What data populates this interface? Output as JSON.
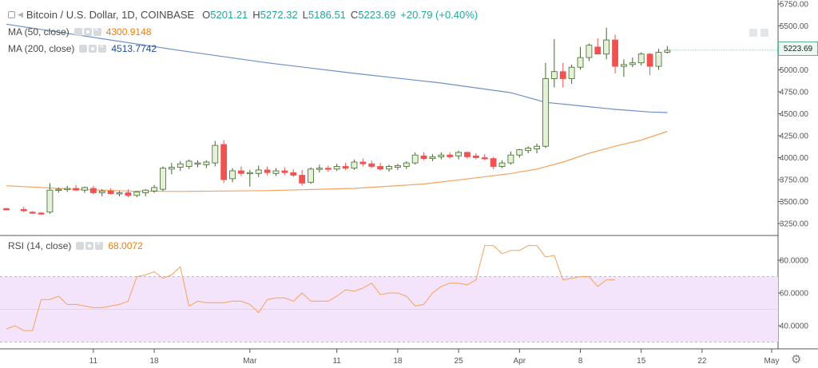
{
  "header": {
    "symbol_title": "Bitcoin / U.S. Dollar, 1D, COINBASE",
    "open_label": "O",
    "open": "5201.21",
    "high_label": "H",
    "high": "5272.32",
    "low_label": "L",
    "low": "5186.51",
    "close_label": "C",
    "close": "5223.69",
    "change": "+20.79 (+0.40%)"
  },
  "indicators": {
    "ma50_label": "MA (50, close)",
    "ma50_value": "4300.9148",
    "ma200_label": "MA (200, close)",
    "ma200_value": "4513.7742",
    "rsi_label": "RSI (14, close)",
    "rsi_value": "68.0072"
  },
  "price_axis": {
    "current_price": "5223.69",
    "ticks": [
      "5750.00",
      "5500.00",
      "5250.00",
      "5000.00",
      "4750.00",
      "4500.00",
      "4250.00",
      "4000.00",
      "3750.00",
      "3500.00",
      "3250.00"
    ]
  },
  "rsi_axis": {
    "ticks": [
      "80.0000",
      "60.0000",
      "40.0000"
    ]
  },
  "time_axis": {
    "labels": [
      "11",
      "18",
      "Mar",
      "11",
      "18",
      "25",
      "Apr",
      "8",
      "15",
      "22",
      "May"
    ]
  },
  "colors": {
    "up_body": "#e7f0d9",
    "up_border": "#3f6b2b",
    "down": "#ef5350",
    "ma50": "#f5a25d",
    "ma200": "#6e8fc7",
    "rsi_line": "#f5a25d",
    "rsi_band": "#f3e4fb",
    "pos_change": "#26a69a",
    "ma50_text": "#f57c00",
    "ma200_text": "#1e4c99"
  },
  "icons": [
    "collapse-icon",
    "chevron-icon",
    "eye-icon",
    "settings-icon",
    "close-icon",
    "gear-icon"
  ],
  "chart_data": [
    {
      "type": "candlestick",
      "title": "Bitcoin / U.S. Dollar, 1D, COINBASE",
      "ylim": [
        3150,
        5780
      ],
      "x_day_range": [
        0,
        88
      ],
      "x_ticks": [
        {
          "day": 10,
          "label": "11"
        },
        {
          "day": 17,
          "label": "18"
        },
        {
          "day": 28,
          "label": "Mar"
        },
        {
          "day": 38,
          "label": "11"
        },
        {
          "day": 45,
          "label": "18"
        },
        {
          "day": 52,
          "label": "25"
        },
        {
          "day": 59,
          "label": "Apr"
        },
        {
          "day": 66,
          "label": "8"
        },
        {
          "day": 73,
          "label": "15"
        },
        {
          "day": 80,
          "label": "22"
        },
        {
          "day": 88,
          "label": "May"
        }
      ],
      "candles": [
        {
          "d": 0,
          "o": 3420,
          "h": 3430,
          "l": 3400,
          "c": 3405
        },
        {
          "d": 2,
          "o": 3410,
          "h": 3440,
          "l": 3380,
          "c": 3395
        },
        {
          "d": 3,
          "o": 3380,
          "h": 3390,
          "l": 3360,
          "c": 3370
        },
        {
          "d": 4,
          "o": 3370,
          "h": 3380,
          "l": 3350,
          "c": 3360
        },
        {
          "d": 5,
          "o": 3380,
          "h": 3710,
          "l": 3360,
          "c": 3630
        },
        {
          "d": 6,
          "o": 3630,
          "h": 3660,
          "l": 3600,
          "c": 3640
        },
        {
          "d": 7,
          "o": 3640,
          "h": 3680,
          "l": 3610,
          "c": 3650
        },
        {
          "d": 8,
          "o": 3650,
          "h": 3690,
          "l": 3620,
          "c": 3630
        },
        {
          "d": 9,
          "o": 3630,
          "h": 3670,
          "l": 3600,
          "c": 3660
        },
        {
          "d": 10,
          "o": 3650,
          "h": 3680,
          "l": 3580,
          "c": 3600
        },
        {
          "d": 11,
          "o": 3600,
          "h": 3640,
          "l": 3560,
          "c": 3620
        },
        {
          "d": 12,
          "o": 3620,
          "h": 3650,
          "l": 3580,
          "c": 3590
        },
        {
          "d": 13,
          "o": 3590,
          "h": 3620,
          "l": 3560,
          "c": 3600
        },
        {
          "d": 14,
          "o": 3600,
          "h": 3640,
          "l": 3550,
          "c": 3570
        },
        {
          "d": 15,
          "o": 3570,
          "h": 3620,
          "l": 3550,
          "c": 3610
        },
        {
          "d": 16,
          "o": 3600,
          "h": 3640,
          "l": 3560,
          "c": 3630
        },
        {
          "d": 17,
          "o": 3620,
          "h": 3690,
          "l": 3600,
          "c": 3660
        },
        {
          "d": 18,
          "o": 3640,
          "h": 3900,
          "l": 3620,
          "c": 3880
        },
        {
          "d": 19,
          "o": 3870,
          "h": 3940,
          "l": 3810,
          "c": 3890
        },
        {
          "d": 20,
          "o": 3890,
          "h": 3960,
          "l": 3850,
          "c": 3930
        },
        {
          "d": 21,
          "o": 3900,
          "h": 3980,
          "l": 3870,
          "c": 3960
        },
        {
          "d": 22,
          "o": 3930,
          "h": 3970,
          "l": 3890,
          "c": 3940
        },
        {
          "d": 23,
          "o": 3920,
          "h": 3970,
          "l": 3880,
          "c": 3950
        },
        {
          "d": 24,
          "o": 3940,
          "h": 4190,
          "l": 3900,
          "c": 4140
        },
        {
          "d": 25,
          "o": 4150,
          "h": 4200,
          "l": 3710,
          "c": 3750
        },
        {
          "d": 26,
          "o": 3760,
          "h": 3880,
          "l": 3720,
          "c": 3850
        },
        {
          "d": 27,
          "o": 3850,
          "h": 3900,
          "l": 3790,
          "c": 3820
        },
        {
          "d": 28,
          "o": 3820,
          "h": 3860,
          "l": 3670,
          "c": 3830
        },
        {
          "d": 29,
          "o": 3820,
          "h": 3910,
          "l": 3780,
          "c": 3860
        },
        {
          "d": 30,
          "o": 3860,
          "h": 3900,
          "l": 3800,
          "c": 3830
        },
        {
          "d": 31,
          "o": 3820,
          "h": 3880,
          "l": 3790,
          "c": 3850
        },
        {
          "d": 32,
          "o": 3850,
          "h": 3890,
          "l": 3800,
          "c": 3830
        },
        {
          "d": 33,
          "o": 3830,
          "h": 3870,
          "l": 3780,
          "c": 3800
        },
        {
          "d": 34,
          "o": 3800,
          "h": 3860,
          "l": 3680,
          "c": 3710
        },
        {
          "d": 35,
          "o": 3720,
          "h": 3890,
          "l": 3700,
          "c": 3870
        },
        {
          "d": 36,
          "o": 3870,
          "h": 3920,
          "l": 3830,
          "c": 3880
        },
        {
          "d": 37,
          "o": 3880,
          "h": 3910,
          "l": 3840,
          "c": 3870
        },
        {
          "d": 38,
          "o": 3870,
          "h": 3930,
          "l": 3850,
          "c": 3900
        },
        {
          "d": 39,
          "o": 3900,
          "h": 3940,
          "l": 3860,
          "c": 3880
        },
        {
          "d": 40,
          "o": 3880,
          "h": 3980,
          "l": 3860,
          "c": 3950
        },
        {
          "d": 41,
          "o": 3950,
          "h": 3990,
          "l": 3900,
          "c": 3930
        },
        {
          "d": 42,
          "o": 3930,
          "h": 3970,
          "l": 3880,
          "c": 3900
        },
        {
          "d": 43,
          "o": 3900,
          "h": 3940,
          "l": 3850,
          "c": 3870
        },
        {
          "d": 44,
          "o": 3870,
          "h": 3920,
          "l": 3840,
          "c": 3900
        },
        {
          "d": 45,
          "o": 3890,
          "h": 3930,
          "l": 3860,
          "c": 3910
        },
        {
          "d": 46,
          "o": 3900,
          "h": 3960,
          "l": 3870,
          "c": 3940
        },
        {
          "d": 47,
          "o": 3940,
          "h": 4060,
          "l": 3920,
          "c": 4030
        },
        {
          "d": 48,
          "o": 4020,
          "h": 4060,
          "l": 3970,
          "c": 3990
        },
        {
          "d": 49,
          "o": 3990,
          "h": 4040,
          "l": 3960,
          "c": 4010
        },
        {
          "d": 50,
          "o": 4010,
          "h": 4060,
          "l": 3980,
          "c": 4030
        },
        {
          "d": 51,
          "o": 4030,
          "h": 4060,
          "l": 3990,
          "c": 4010
        },
        {
          "d": 52,
          "o": 4020,
          "h": 4080,
          "l": 3980,
          "c": 4060
        },
        {
          "d": 53,
          "o": 4060,
          "h": 4070,
          "l": 3990,
          "c": 4010
        },
        {
          "d": 54,
          "o": 4020,
          "h": 4050,
          "l": 3980,
          "c": 4000
        },
        {
          "d": 55,
          "o": 4000,
          "h": 4040,
          "l": 3970,
          "c": 3990
        },
        {
          "d": 56,
          "o": 3990,
          "h": 4010,
          "l": 3870,
          "c": 3900
        },
        {
          "d": 57,
          "o": 3900,
          "h": 3970,
          "l": 3880,
          "c": 3940
        },
        {
          "d": 58,
          "o": 3940,
          "h": 4070,
          "l": 3920,
          "c": 4030
        },
        {
          "d": 59,
          "o": 4030,
          "h": 4100,
          "l": 4000,
          "c": 4090
        },
        {
          "d": 60,
          "o": 4080,
          "h": 4130,
          "l": 4050,
          "c": 4110
        },
        {
          "d": 61,
          "o": 4100,
          "h": 4160,
          "l": 4050,
          "c": 4130
        },
        {
          "d": 62,
          "o": 4130,
          "h": 5080,
          "l": 4110,
          "c": 4900
        },
        {
          "d": 63,
          "o": 4900,
          "h": 5350,
          "l": 4800,
          "c": 4980
        },
        {
          "d": 64,
          "o": 4980,
          "h": 5080,
          "l": 4800,
          "c": 4900
        },
        {
          "d": 65,
          "o": 4900,
          "h": 5060,
          "l": 4840,
          "c": 5030
        },
        {
          "d": 66,
          "o": 5030,
          "h": 5260,
          "l": 5000,
          "c": 5140
        },
        {
          "d": 67,
          "o": 5140,
          "h": 5300,
          "l": 5100,
          "c": 5280
        },
        {
          "d": 68,
          "o": 5260,
          "h": 5360,
          "l": 5180,
          "c": 5180
        },
        {
          "d": 69,
          "o": 5180,
          "h": 5480,
          "l": 5120,
          "c": 5340
        },
        {
          "d": 70,
          "o": 5340,
          "h": 5400,
          "l": 4960,
          "c": 5040
        },
        {
          "d": 71,
          "o": 5040,
          "h": 5120,
          "l": 4920,
          "c": 5060
        },
        {
          "d": 72,
          "o": 5060,
          "h": 5140,
          "l": 5030,
          "c": 5080
        },
        {
          "d": 73,
          "o": 5080,
          "h": 5200,
          "l": 5050,
          "c": 5180
        },
        {
          "d": 74,
          "o": 5180,
          "h": 5190,
          "l": 4940,
          "c": 5040
        },
        {
          "d": 75,
          "o": 5040,
          "h": 5240,
          "l": 5000,
          "c": 5200
        },
        {
          "d": 76,
          "o": 5201.21,
          "h": 5272.32,
          "l": 5186.51,
          "c": 5223.69
        }
      ],
      "series": [
        {
          "name": "MA (50, close)",
          "points": [
            [
              0,
              3680
            ],
            [
              8,
              3640
            ],
            [
              14,
              3620
            ],
            [
              20,
              3615
            ],
            [
              30,
              3625
            ],
            [
              40,
              3650
            ],
            [
              48,
              3700
            ],
            [
              54,
              3770
            ],
            [
              58,
              3820
            ],
            [
              61,
              3870
            ],
            [
              64,
              3950
            ],
            [
              67,
              4050
            ],
            [
              70,
              4130
            ],
            [
              73,
              4200
            ],
            [
              76,
              4300
            ]
          ]
        },
        {
          "name": "MA (200, close)",
          "points": [
            [
              0,
              5520
            ],
            [
              10,
              5370
            ],
            [
              20,
              5220
            ],
            [
              30,
              5080
            ],
            [
              40,
              4960
            ],
            [
              50,
              4850
            ],
            [
              58,
              4740
            ],
            [
              62,
              4630
            ],
            [
              66,
              4590
            ],
            [
              70,
              4550
            ],
            [
              74,
              4520
            ],
            [
              76,
              4514
            ]
          ]
        }
      ]
    },
    {
      "type": "line",
      "title": "RSI (14, close)",
      "ylim": [
        25,
        95
      ],
      "band": [
        30,
        70
      ],
      "series": [
        {
          "name": "RSI (14, close)",
          "points": [
            [
              0,
              38
            ],
            [
              1,
              40
            ],
            [
              2,
              37
            ],
            [
              3,
              37
            ],
            [
              4,
              56
            ],
            [
              5,
              56
            ],
            [
              6,
              58
            ],
            [
              7,
              53
            ],
            [
              8,
              53
            ],
            [
              9,
              52
            ],
            [
              10,
              51
            ],
            [
              11,
              51
            ],
            [
              12,
              52
            ],
            [
              13,
              53
            ],
            [
              14,
              55
            ],
            [
              15,
              70
            ],
            [
              16,
              71
            ],
            [
              17,
              73
            ],
            [
              18,
              69
            ],
            [
              19,
              71
            ],
            [
              20,
              76
            ],
            [
              21,
              52
            ],
            [
              22,
              55
            ],
            [
              23,
              54
            ],
            [
              24,
              54
            ],
            [
              25,
              54
            ],
            [
              26,
              55
            ],
            [
              27,
              55
            ],
            [
              28,
              53
            ],
            [
              29,
              48
            ],
            [
              30,
              56
            ],
            [
              31,
              57
            ],
            [
              32,
              57
            ],
            [
              33,
              55
            ],
            [
              34,
              60
            ],
            [
              35,
              55
            ],
            [
              36,
              55
            ],
            [
              37,
              55
            ],
            [
              38,
              58
            ],
            [
              39,
              62
            ],
            [
              40,
              61
            ],
            [
              41,
              63
            ],
            [
              42,
              66
            ],
            [
              43,
              59
            ],
            [
              44,
              60
            ],
            [
              45,
              60
            ],
            [
              46,
              58
            ],
            [
              47,
              52
            ],
            [
              48,
              53
            ],
            [
              49,
              60
            ],
            [
              50,
              64
            ],
            [
              51,
              66
            ],
            [
              52,
              66
            ],
            [
              53,
              65
            ],
            [
              54,
              68
            ],
            [
              55,
              89
            ],
            [
              56,
              89
            ],
            [
              57,
              84
            ],
            [
              58,
              86
            ],
            [
              59,
              86
            ],
            [
              60,
              89
            ],
            [
              61,
              89
            ],
            [
              62,
              82
            ],
            [
              63,
              83
            ],
            [
              64,
              68
            ],
            [
              65,
              69
            ],
            [
              66,
              70
            ],
            [
              67,
              70
            ],
            [
              68,
              64
            ],
            [
              69,
              68
            ],
            [
              70,
              68
            ]
          ]
        }
      ]
    }
  ]
}
